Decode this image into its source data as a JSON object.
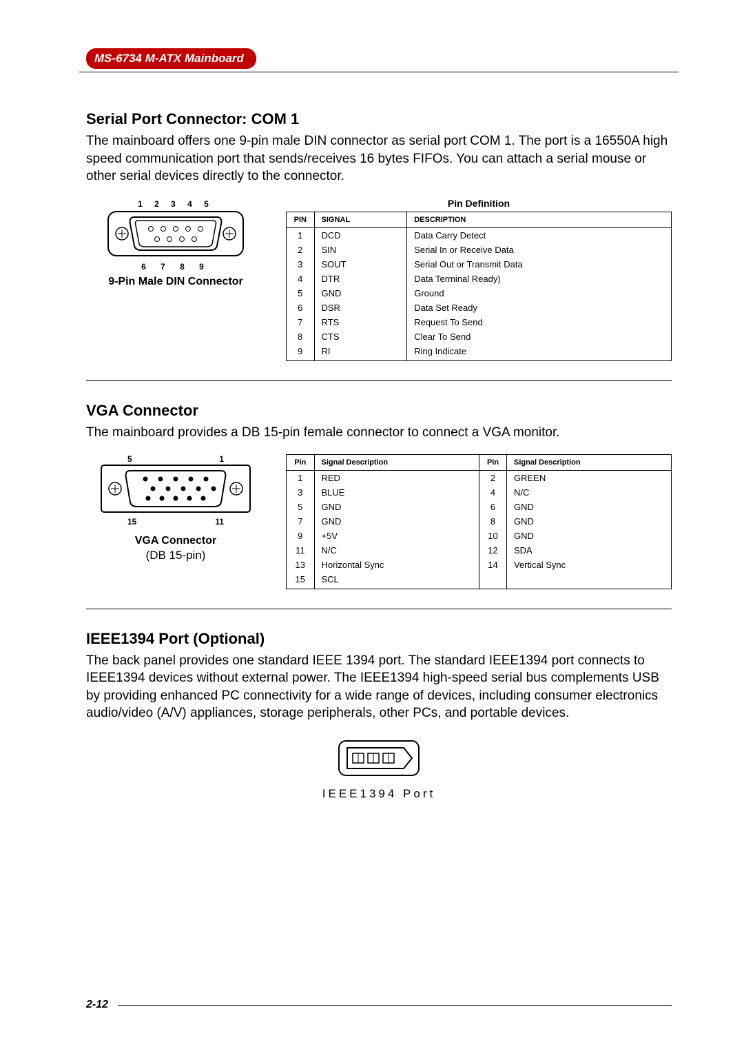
{
  "header": {
    "badge": "MS-6734 M-ATX Mainboard"
  },
  "serial": {
    "title": "Serial Port Connector: COM 1",
    "body": "The mainboard offers one 9-pin male DIN connector as serial port COM 1.  The port is a 16550A high speed communication port that sends/receives 16 bytes FIFOs.  You can attach a serial mouse or other serial devices directly to the connector.",
    "diagram": {
      "top_nums": "1   2   3   4   5",
      "bottom_nums": "6   7   8   9",
      "label": "9-Pin Male DIN Connector"
    },
    "table": {
      "caption": "Pin Definition",
      "columns": [
        "PIN",
        "SIGNAL",
        "DESCRIPTION"
      ],
      "rows": [
        [
          "1",
          "DCD",
          "Data Carry Detect"
        ],
        [
          "2",
          "SIN",
          "Serial In or Receive Data"
        ],
        [
          "3",
          "SOUT",
          "Serial Out or Transmit Data"
        ],
        [
          "4",
          "DTR",
          "Data Terminal Ready)"
        ],
        [
          "5",
          "GND",
          "Ground"
        ],
        [
          "6",
          "DSR",
          "Data Set Ready"
        ],
        [
          "7",
          "RTS",
          "Request To Send"
        ],
        [
          "8",
          "CTS",
          "Clear To Send"
        ],
        [
          "9",
          "RI",
          "Ring Indicate"
        ]
      ]
    }
  },
  "vga": {
    "title": "VGA Connector",
    "body": "The mainboard provides a DB 15-pin female connector to connect a VGA monitor.",
    "diagram": {
      "top_left": "5",
      "top_right": "1",
      "bot_left": "15",
      "bot_right": "11",
      "label": "VGA Connector",
      "sublabel": "(DB 15-pin)"
    },
    "table": {
      "columns": [
        "Pin",
        "Signal Description",
        "Pin",
        "Signal Description"
      ],
      "rows": [
        [
          "1",
          "RED",
          "2",
          "GREEN"
        ],
        [
          "3",
          "BLUE",
          "4",
          "N/C"
        ],
        [
          "5",
          "GND",
          "6",
          "GND"
        ],
        [
          "7",
          "GND",
          "8",
          "GND"
        ],
        [
          "9",
          "+5V",
          "10",
          "GND"
        ],
        [
          "11",
          "N/C",
          "12",
          "SDA"
        ],
        [
          "13",
          "Horizontal Sync",
          "14",
          "Vertical Sync"
        ],
        [
          "15",
          "SCL",
          "",
          ""
        ]
      ]
    }
  },
  "ieee": {
    "title": "IEEE1394 Port (Optional)",
    "body": "The back panel provides one standard IEEE 1394 port. The standard IEEE1394 port connects to IEEE1394 devices without external power. The IEEE1394 high-speed serial bus complements USB by providing enhanced PC connectivity for a wide range of devices, including consumer electronics audio/video (A/V) appliances, storage peripherals, other PCs, and portable devices.",
    "label": "IEEE1394 Port"
  },
  "footer": {
    "page": "2-12"
  }
}
